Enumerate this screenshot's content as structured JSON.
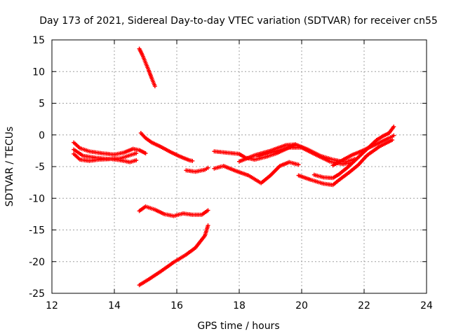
{
  "chart_data": {
    "type": "scatter",
    "title": "Day 173 of 2021, Sidereal Day-to-day VTEC variation (SDTVAR) for receiver cn55",
    "xlabel": "GPS time / hours",
    "ylabel": "SDTVAR / TECUs",
    "xlim": [
      12,
      24
    ],
    "ylim": [
      -25,
      15
    ],
    "xticks": [
      12,
      14,
      16,
      18,
      20,
      22,
      24
    ],
    "yticks": [
      15,
      10,
      5,
      0,
      -5,
      -10,
      -15,
      -20,
      -25
    ],
    "grid": true,
    "marker": "+",
    "color": "#ff0000",
    "series": [
      {
        "name": "s1",
        "points": [
          [
            12.7,
            -1.2
          ],
          [
            12.9,
            -2.1
          ],
          [
            13.2,
            -2.6
          ],
          [
            13.6,
            -2.9
          ],
          [
            14.0,
            -3.1
          ],
          [
            14.3,
            -2.8
          ],
          [
            14.6,
            -2.2
          ],
          [
            14.8,
            -2.4
          ],
          [
            15.0,
            -2.9
          ]
        ]
      },
      {
        "name": "s2",
        "points": [
          [
            12.7,
            -2.3
          ],
          [
            13.0,
            -3.3
          ],
          [
            13.4,
            -3.6
          ],
          [
            13.8,
            -3.8
          ],
          [
            14.2,
            -3.7
          ],
          [
            14.5,
            -3.2
          ],
          [
            14.7,
            -2.9
          ]
        ]
      },
      {
        "name": "s3",
        "points": [
          [
            12.7,
            -3.0
          ],
          [
            12.9,
            -3.9
          ],
          [
            13.2,
            -4.1
          ],
          [
            13.5,
            -3.9
          ],
          [
            13.9,
            -3.8
          ],
          [
            14.2,
            -4.0
          ],
          [
            14.5,
            -4.3
          ],
          [
            14.7,
            -4.0
          ]
        ]
      },
      {
        "name": "s4",
        "points": [
          [
            14.8,
            13.6
          ],
          [
            14.9,
            12.6
          ],
          [
            15.0,
            11.4
          ],
          [
            15.1,
            10.2
          ],
          [
            15.2,
            8.9
          ],
          [
            15.3,
            7.7
          ]
        ]
      },
      {
        "name": "s5",
        "points": [
          [
            14.85,
            0.3
          ],
          [
            15.0,
            -0.5
          ],
          [
            15.2,
            -1.2
          ],
          [
            15.5,
            -1.9
          ],
          [
            15.8,
            -2.7
          ],
          [
            16.1,
            -3.4
          ],
          [
            16.4,
            -4.0
          ],
          [
            16.5,
            -4.1
          ]
        ]
      },
      {
        "name": "s6",
        "points": [
          [
            16.3,
            -5.6
          ],
          [
            16.6,
            -5.8
          ],
          [
            16.9,
            -5.5
          ],
          [
            17.0,
            -5.2
          ]
        ]
      },
      {
        "name": "s7",
        "points": [
          [
            17.2,
            -2.6
          ],
          [
            17.6,
            -2.8
          ],
          [
            18.0,
            -3.0
          ],
          [
            18.2,
            -3.6
          ],
          [
            18.5,
            -3.9
          ],
          [
            18.9,
            -3.4
          ],
          [
            19.2,
            -2.9
          ],
          [
            19.5,
            -2.2
          ],
          [
            19.8,
            -1.5
          ]
        ]
      },
      {
        "name": "s8",
        "points": [
          [
            17.2,
            -5.3
          ],
          [
            17.5,
            -4.9
          ],
          [
            17.9,
            -5.7
          ],
          [
            18.3,
            -6.4
          ],
          [
            18.7,
            -7.6
          ],
          [
            19.0,
            -6.4
          ],
          [
            19.3,
            -4.9
          ],
          [
            19.6,
            -4.3
          ],
          [
            19.9,
            -4.7
          ]
        ]
      },
      {
        "name": "s9",
        "points": [
          [
            18.0,
            -4.2
          ],
          [
            18.5,
            -3.2
          ],
          [
            19.0,
            -2.5
          ],
          [
            19.5,
            -1.6
          ],
          [
            19.8,
            -1.5
          ],
          [
            20.2,
            -2.3
          ],
          [
            20.6,
            -3.3
          ],
          [
            21.0,
            -3.9
          ],
          [
            21.4,
            -4.3
          ],
          [
            21.7,
            -3.8
          ]
        ]
      },
      {
        "name": "s10",
        "points": [
          [
            18.6,
            -3.4
          ],
          [
            19.0,
            -2.8
          ],
          [
            19.6,
            -2.0
          ],
          [
            20.0,
            -2.0
          ],
          [
            20.4,
            -3.0
          ],
          [
            20.9,
            -4.2
          ],
          [
            21.3,
            -4.6
          ],
          [
            21.6,
            -4.4
          ]
        ]
      },
      {
        "name": "s11",
        "points": [
          [
            19.9,
            -6.4
          ],
          [
            20.3,
            -7.1
          ],
          [
            20.7,
            -7.7
          ],
          [
            21.0,
            -7.9
          ],
          [
            21.2,
            -7.1
          ],
          [
            21.5,
            -6.0
          ],
          [
            21.8,
            -4.8
          ],
          [
            22.1,
            -3.2
          ],
          [
            22.5,
            -1.8
          ],
          [
            22.9,
            -0.8
          ]
        ]
      },
      {
        "name": "s12",
        "points": [
          [
            20.4,
            -6.3
          ],
          [
            20.7,
            -6.7
          ],
          [
            21.0,
            -6.8
          ],
          [
            21.2,
            -6.2
          ],
          [
            21.5,
            -5.0
          ],
          [
            21.8,
            -3.6
          ],
          [
            22.1,
            -2.2
          ],
          [
            22.4,
            -0.8
          ],
          [
            22.6,
            -0.2
          ],
          [
            22.8,
            0.3
          ],
          [
            22.95,
            1.3
          ]
        ]
      },
      {
        "name": "s13",
        "points": [
          [
            21.0,
            -4.8
          ],
          [
            21.3,
            -4.0
          ],
          [
            21.6,
            -3.2
          ],
          [
            21.9,
            -2.6
          ],
          [
            22.2,
            -1.9
          ],
          [
            22.5,
            -1.2
          ],
          [
            22.8,
            -0.5
          ],
          [
            22.95,
            -0.1
          ]
        ]
      },
      {
        "name": "s14",
        "points": [
          [
            14.8,
            -12.0
          ],
          [
            15.0,
            -11.3
          ],
          [
            15.3,
            -11.8
          ],
          [
            15.6,
            -12.5
          ],
          [
            15.9,
            -12.8
          ],
          [
            16.2,
            -12.4
          ],
          [
            16.5,
            -12.6
          ],
          [
            16.8,
            -12.6
          ],
          [
            17.0,
            -11.9
          ]
        ]
      },
      {
        "name": "s15",
        "points": [
          [
            14.8,
            -23.7
          ],
          [
            15.1,
            -22.8
          ],
          [
            15.5,
            -21.5
          ],
          [
            15.9,
            -20.1
          ],
          [
            16.3,
            -18.9
          ],
          [
            16.6,
            -17.8
          ],
          [
            16.9,
            -15.9
          ],
          [
            17.0,
            -14.3
          ]
        ]
      }
    ]
  }
}
